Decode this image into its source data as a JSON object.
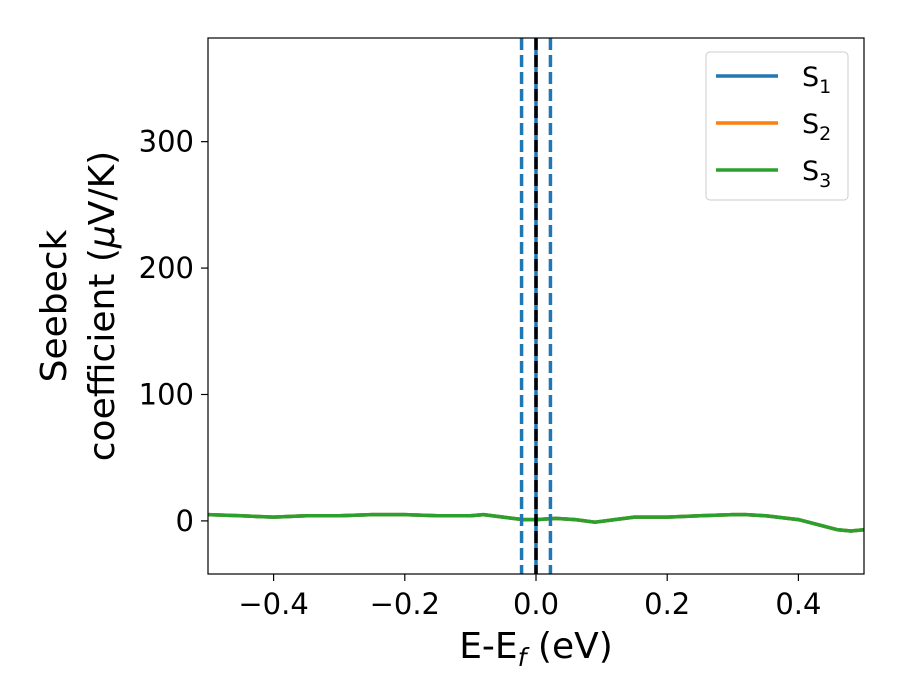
{
  "chart_data": {
    "type": "line",
    "xlabel": "E-E",
    "xlabel_sub": "f",
    "xlabel_unit": " (eV)",
    "ylabel_line1": "Seebeck",
    "ylabel_line2_prefix": "coefficient  (",
    "ylabel_mu": "μ",
    "ylabel_line2_suffix": "V/K)",
    "xlim": [
      -0.5,
      0.5
    ],
    "ylim": [
      -42,
      382
    ],
    "xticks": [
      -0.4,
      -0.2,
      0.0,
      0.2,
      0.4
    ],
    "xtick_labels": [
      "−0.4",
      "−0.2",
      "0.0",
      "0.2",
      "0.4"
    ],
    "yticks": [
      0,
      100,
      200,
      300
    ],
    "ytick_labels": [
      "0",
      "100",
      "200",
      "300"
    ],
    "grid": false,
    "legend_position": "top-right",
    "series": [
      {
        "name": "S",
        "sub": "1",
        "color": "#1f77b4",
        "x": [
          -0.5,
          -0.45,
          -0.4,
          -0.35,
          -0.3,
          -0.25,
          -0.2,
          -0.15,
          -0.1,
          -0.08,
          -0.05,
          -0.02,
          0.0,
          0.03,
          0.06,
          0.09,
          0.12,
          0.15,
          0.2,
          0.25,
          0.3,
          0.32,
          0.35,
          0.4,
          0.43,
          0.46,
          0.48,
          0.5
        ],
        "y": [
          5,
          4,
          3,
          4,
          4,
          5,
          5,
          4,
          4,
          5,
          3,
          1,
          1,
          2,
          1,
          -1,
          1,
          3,
          3,
          4,
          5,
          5,
          4,
          1,
          -3,
          -7,
          -8,
          -7
        ]
      },
      {
        "name": "S",
        "sub": "2",
        "color": "#ff7f0e",
        "x": [
          -0.5,
          -0.45,
          -0.4,
          -0.35,
          -0.3,
          -0.25,
          -0.2,
          -0.15,
          -0.1,
          -0.08,
          -0.05,
          -0.02,
          0.0,
          0.03,
          0.06,
          0.09,
          0.12,
          0.15,
          0.2,
          0.25,
          0.3,
          0.32,
          0.35,
          0.4,
          0.43,
          0.46,
          0.48,
          0.5
        ],
        "y": [
          5,
          4,
          3,
          4,
          4,
          5,
          5,
          4,
          4,
          5,
          3,
          1,
          1,
          2,
          1,
          -1,
          1,
          3,
          3,
          4,
          5,
          5,
          4,
          1,
          -3,
          -7,
          -8,
          -7
        ]
      },
      {
        "name": "S",
        "sub": "3",
        "color": "#2ca02c",
        "x": [
          -0.5,
          -0.45,
          -0.4,
          -0.35,
          -0.3,
          -0.25,
          -0.2,
          -0.15,
          -0.1,
          -0.08,
          -0.05,
          -0.02,
          0.0,
          0.03,
          0.06,
          0.09,
          0.12,
          0.15,
          0.2,
          0.25,
          0.3,
          0.32,
          0.35,
          0.4,
          0.43,
          0.46,
          0.48,
          0.5
        ],
        "y": [
          5,
          4,
          3,
          4,
          4,
          5,
          5,
          4,
          4,
          5,
          3,
          1,
          1,
          2,
          1,
          -1,
          1,
          3,
          3,
          4,
          5,
          5,
          4,
          1,
          -3,
          -7,
          -8,
          -7
        ]
      }
    ],
    "vlines": [
      {
        "x": -0.022,
        "style": "dashed",
        "color": "#1f77b4"
      },
      {
        "x": 0.022,
        "style": "dashed",
        "color": "#1f77b4"
      },
      {
        "x": 0.0,
        "style": "solid",
        "color": "#1f77b4"
      },
      {
        "x": 0.0,
        "style": "dashed",
        "color": "#000000"
      }
    ]
  }
}
